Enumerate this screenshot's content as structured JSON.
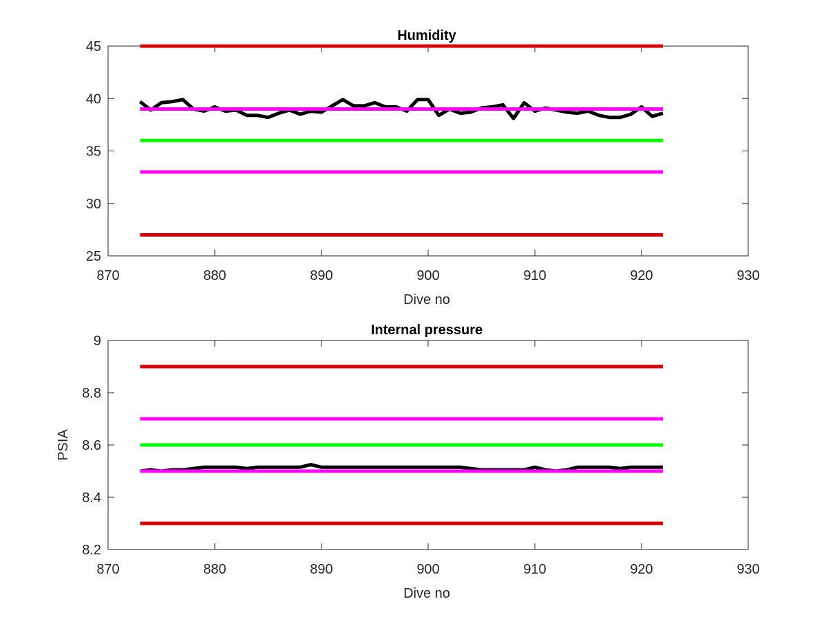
{
  "chart_data": [
    {
      "type": "line",
      "title": "Humidity",
      "xlabel": "Dive no",
      "ylabel": "",
      "xlim": [
        870,
        930
      ],
      "ylim": [
        25,
        45
      ],
      "xticks": [
        870,
        880,
        890,
        900,
        910,
        920,
        930
      ],
      "yticks": [
        25,
        30,
        35,
        40,
        45
      ],
      "grid": false,
      "legend": "none",
      "series": [
        {
          "color": "#000000",
          "x": [
            873,
            874,
            875,
            876,
            877,
            878,
            879,
            880,
            881,
            882,
            883,
            884,
            885,
            886,
            887,
            888,
            889,
            890,
            891,
            892,
            893,
            894,
            895,
            896,
            897,
            898,
            899,
            900,
            901,
            902,
            903,
            904,
            905,
            906,
            907,
            908,
            909,
            910,
            911,
            912,
            913,
            914,
            915,
            916,
            917,
            918,
            919,
            920,
            921,
            922
          ],
          "y": [
            39.7,
            38.9,
            39.6,
            39.7,
            39.9,
            39.0,
            38.8,
            39.2,
            38.8,
            38.9,
            38.4,
            38.4,
            38.2,
            38.6,
            38.9,
            38.5,
            38.8,
            38.7,
            39.3,
            39.9,
            39.3,
            39.3,
            39.6,
            39.2,
            39.2,
            38.8,
            39.9,
            39.9,
            38.4,
            39.0,
            38.6,
            38.7,
            39.1,
            39.2,
            39.4,
            38.1,
            39.6,
            38.8,
            39.1,
            38.9,
            38.7,
            38.6,
            38.8,
            38.4,
            38.2,
            38.2,
            38.5,
            39.2,
            38.3,
            38.6
          ]
        },
        {
          "color": "#d90000",
          "x": [
            873,
            922
          ],
          "y": [
            45,
            45
          ]
        },
        {
          "color": "#d90000",
          "x": [
            873,
            922
          ],
          "y": [
            27,
            27
          ]
        },
        {
          "color": "#ff00ff",
          "x": [
            873,
            922
          ],
          "y": [
            39,
            39
          ]
        },
        {
          "color": "#ff00ff",
          "x": [
            873,
            922
          ],
          "y": [
            33,
            33
          ]
        },
        {
          "color": "#00ff00",
          "x": [
            873,
            922
          ],
          "y": [
            36,
            36
          ]
        }
      ]
    },
    {
      "type": "line",
      "title": "Internal pressure",
      "xlabel": "Dive no",
      "ylabel": "PSIA",
      "xlim": [
        870,
        930
      ],
      "ylim": [
        8.2,
        9
      ],
      "xticks": [
        870,
        880,
        890,
        900,
        910,
        920,
        930
      ],
      "yticks": [
        8.2,
        8.4,
        8.6,
        8.8,
        9
      ],
      "grid": false,
      "legend": "none",
      "series": [
        {
          "color": "#000000",
          "x": [
            873,
            874,
            875,
            876,
            877,
            878,
            879,
            880,
            881,
            882,
            883,
            884,
            885,
            886,
            887,
            888,
            889,
            890,
            891,
            892,
            893,
            894,
            895,
            896,
            897,
            898,
            899,
            900,
            901,
            902,
            903,
            904,
            905,
            906,
            907,
            908,
            909,
            910,
            911,
            912,
            913,
            914,
            915,
            916,
            917,
            918,
            919,
            920,
            921,
            922
          ],
          "y": [
            8.5,
            8.505,
            8.5,
            8.505,
            8.505,
            8.51,
            8.515,
            8.515,
            8.515,
            8.515,
            8.51,
            8.515,
            8.515,
            8.515,
            8.515,
            8.515,
            8.525,
            8.515,
            8.515,
            8.515,
            8.515,
            8.515,
            8.515,
            8.515,
            8.515,
            8.515,
            8.515,
            8.515,
            8.515,
            8.515,
            8.515,
            8.51,
            8.505,
            8.505,
            8.505,
            8.505,
            8.505,
            8.515,
            8.505,
            8.5,
            8.505,
            8.515,
            8.515,
            8.515,
            8.515,
            8.51,
            8.515,
            8.515,
            8.515,
            8.515
          ]
        },
        {
          "color": "#d90000",
          "x": [
            873,
            922
          ],
          "y": [
            8.9,
            8.9
          ]
        },
        {
          "color": "#d90000",
          "x": [
            873,
            922
          ],
          "y": [
            8.3,
            8.3
          ]
        },
        {
          "color": "#ff00ff",
          "x": [
            873,
            922
          ],
          "y": [
            8.7,
            8.7
          ]
        },
        {
          "color": "#ff00ff",
          "x": [
            873,
            922
          ],
          "y": [
            8.5,
            8.5
          ]
        },
        {
          "color": "#00ff00",
          "x": [
            873,
            922
          ],
          "y": [
            8.6,
            8.6
          ]
        }
      ]
    }
  ]
}
